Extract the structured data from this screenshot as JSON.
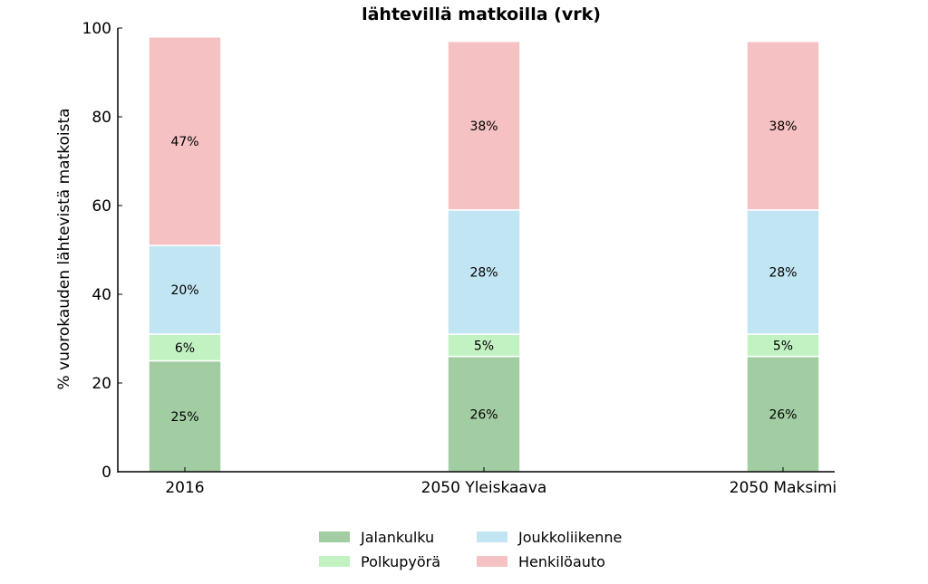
{
  "chart_data": {
    "type": "bar",
    "stacked": true,
    "title": "lähtevillä matkoilla (vrk)",
    "ylabel": "% vuorokauden lähtevistä matkoista",
    "xlabel": "",
    "ylim": [
      0,
      100
    ],
    "yticks": [
      0,
      20,
      40,
      60,
      80,
      100
    ],
    "categories": [
      "2016",
      "2050 Yleiskaava",
      "2050 Maksimi"
    ],
    "series": [
      {
        "name": "Jalankulku",
        "color": "#a2cca2",
        "values": [
          25,
          26,
          26
        ],
        "labels": [
          "25%",
          "26%",
          "26%"
        ]
      },
      {
        "name": "Polkupyörä",
        "color": "#c2f2c2",
        "values": [
          6,
          5,
          5
        ],
        "labels": [
          "6%",
          "5%",
          "5%"
        ]
      },
      {
        "name": "Joukkoliikenne",
        "color": "#c2e5f3",
        "values": [
          20,
          28,
          28
        ],
        "labels": [
          "20%",
          "28%",
          "28%"
        ]
      },
      {
        "name": "Henkilöauto",
        "color": "#f6c1c2",
        "values": [
          47,
          38,
          38
        ],
        "labels": [
          "47%",
          "38%",
          "38%"
        ]
      }
    ],
    "legend_position": "bottom-center"
  }
}
